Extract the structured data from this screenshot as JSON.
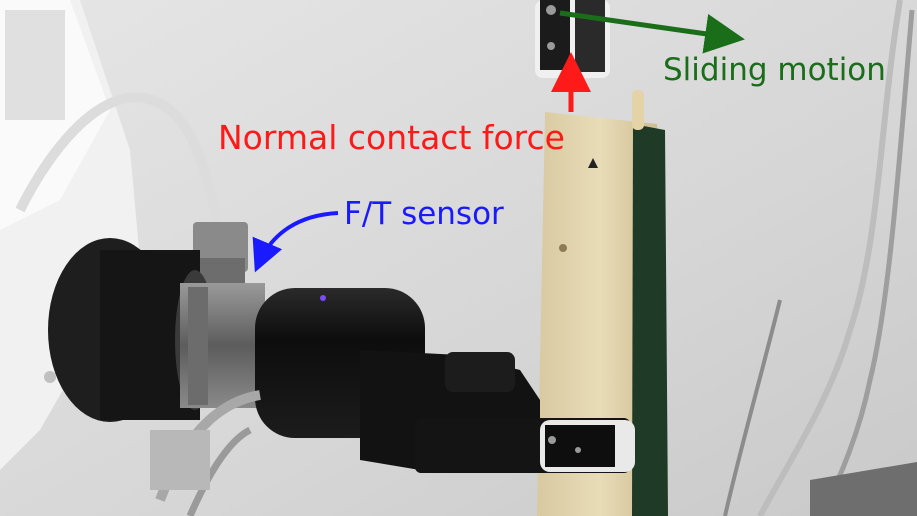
{
  "annotations": {
    "sliding_motion": {
      "text": "Sliding motion",
      "color": "#1a6e1a"
    },
    "normal_force": {
      "text": "Normal contact force",
      "color": "#ff1a1a"
    },
    "ft_sensor": {
      "text": "F/T sensor",
      "color": "#1a1aff"
    }
  }
}
